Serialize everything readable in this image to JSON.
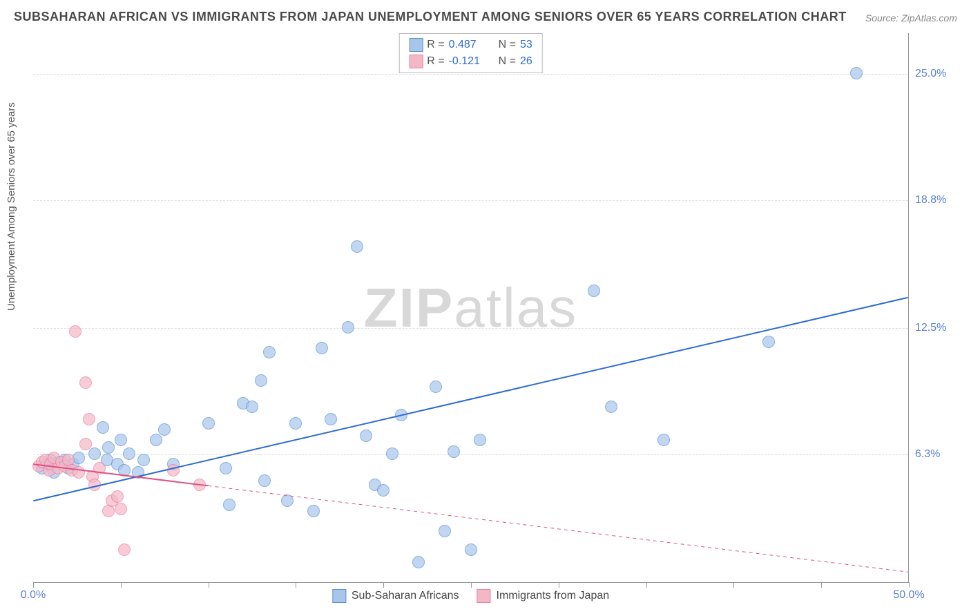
{
  "title": "SUBSAHARAN AFRICAN VS IMMIGRANTS FROM JAPAN UNEMPLOYMENT AMONG SENIORS OVER 65 YEARS CORRELATION CHART",
  "source_label": "Source:",
  "source_value": "ZipAtlas.com",
  "y_axis_label": "Unemployment Among Seniors over 65 years",
  "watermark_a": "ZIP",
  "watermark_b": "atlas",
  "chart": {
    "type": "scatter",
    "xlim": [
      0,
      50
    ],
    "ylim": [
      0,
      27
    ],
    "x_ticks": [
      0,
      5,
      10,
      15,
      20,
      25,
      30,
      35,
      40,
      45,
      50
    ],
    "x_tick_labels": {
      "0": "0.0%",
      "50": "50.0%"
    },
    "y_ticks": [
      6.3,
      12.5,
      18.8,
      25.0
    ],
    "y_tick_labels": [
      "6.3%",
      "12.5%",
      "18.8%",
      "25.0%"
    ],
    "grid_color": "#dddddd",
    "axis_color": "#999999",
    "background_color": "#ffffff",
    "tick_label_color": "#5a7fd4",
    "point_radius": 9,
    "series": [
      {
        "name": "Sub-Saharan Africans",
        "fill": "#a7c6ea",
        "stroke": "#5a8fd0",
        "fill_opacity": 0.7,
        "R": "0.487",
        "N": "53",
        "trend": {
          "x1": 0,
          "y1": 4.0,
          "x2": 50,
          "y2": 14.0,
          "solid_until_x": 50,
          "color": "#2d6cd2",
          "width": 2
        },
        "points": [
          [
            0.5,
            5.6
          ],
          [
            0.8,
            5.8
          ],
          [
            1.0,
            6.0
          ],
          [
            1.2,
            5.4
          ],
          [
            1.5,
            5.9
          ],
          [
            1.8,
            6.0
          ],
          [
            2.0,
            5.6
          ],
          [
            2.3,
            5.8
          ],
          [
            2.6,
            6.1
          ],
          [
            4.0,
            7.6
          ],
          [
            4.2,
            6.0
          ],
          [
            4.3,
            6.6
          ],
          [
            4.8,
            5.8
          ],
          [
            5.0,
            7.0
          ],
          [
            5.2,
            5.5
          ],
          [
            5.5,
            6.3
          ],
          [
            6.0,
            5.4
          ],
          [
            6.3,
            6.0
          ],
          [
            7.0,
            7.0
          ],
          [
            7.5,
            7.5
          ],
          [
            8.0,
            5.8
          ],
          [
            10.0,
            7.8
          ],
          [
            11.0,
            5.6
          ],
          [
            11.2,
            3.8
          ],
          [
            12.0,
            8.8
          ],
          [
            12.5,
            8.6
          ],
          [
            13.0,
            9.9
          ],
          [
            13.2,
            5.0
          ],
          [
            13.5,
            11.3
          ],
          [
            14.5,
            4.0
          ],
          [
            15.0,
            7.8
          ],
          [
            16.0,
            3.5
          ],
          [
            16.5,
            11.5
          ],
          [
            17.0,
            8.0
          ],
          [
            18.0,
            12.5
          ],
          [
            18.5,
            16.5
          ],
          [
            19.0,
            7.2
          ],
          [
            19.5,
            4.8
          ],
          [
            20.0,
            4.5
          ],
          [
            20.5,
            6.3
          ],
          [
            21.0,
            8.2
          ],
          [
            22.0,
            1.0
          ],
          [
            23.0,
            9.6
          ],
          [
            23.5,
            2.5
          ],
          [
            24.0,
            6.4
          ],
          [
            25.0,
            1.6
          ],
          [
            25.5,
            7.0
          ],
          [
            32.0,
            14.3
          ],
          [
            33.0,
            8.6
          ],
          [
            36.0,
            7.0
          ],
          [
            42.0,
            11.8
          ],
          [
            47.0,
            25.0
          ],
          [
            3.5,
            6.3
          ]
        ]
      },
      {
        "name": "Immigrants from Japan",
        "fill": "#f4b7c6",
        "stroke": "#e77ea0",
        "fill_opacity": 0.7,
        "R": "-0.121",
        "N": "26",
        "trend": {
          "x1": 0,
          "y1": 5.8,
          "x2": 50,
          "y2": 0.5,
          "solid_until_x": 10,
          "color": "#e05080",
          "width": 2
        },
        "points": [
          [
            0.3,
            5.7
          ],
          [
            0.5,
            5.9
          ],
          [
            0.7,
            6.0
          ],
          [
            0.9,
            5.5
          ],
          [
            1.0,
            5.8
          ],
          [
            1.2,
            6.1
          ],
          [
            1.4,
            5.6
          ],
          [
            1.6,
            5.9
          ],
          [
            1.8,
            5.7
          ],
          [
            2.0,
            6.0
          ],
          [
            2.2,
            5.5
          ],
          [
            2.6,
            5.4
          ],
          [
            3.0,
            6.8
          ],
          [
            3.4,
            5.2
          ],
          [
            3.8,
            5.6
          ],
          [
            2.4,
            12.3
          ],
          [
            3.0,
            9.8
          ],
          [
            3.2,
            8.0
          ],
          [
            3.5,
            4.8
          ],
          [
            4.3,
            3.5
          ],
          [
            4.5,
            4.0
          ],
          [
            4.8,
            4.2
          ],
          [
            5.0,
            3.6
          ],
          [
            5.2,
            1.6
          ],
          [
            8.0,
            5.5
          ],
          [
            9.5,
            4.8
          ]
        ]
      }
    ]
  },
  "legend_top": {
    "R_label": "R =",
    "N_label": "N =",
    "text_color": "#555555",
    "value_color": "#2d6cd2"
  },
  "legend_bottom": {
    "items": [
      "Sub-Saharan Africans",
      "Immigrants from Japan"
    ]
  }
}
